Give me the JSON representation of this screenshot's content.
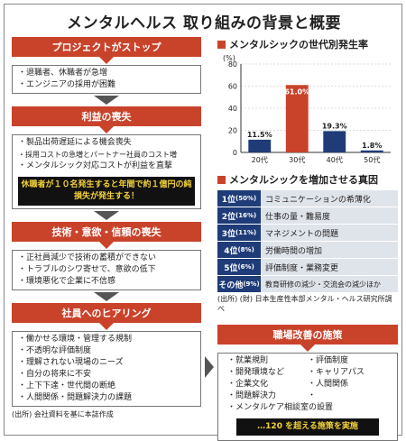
{
  "title": "メンタルヘルス 取り組みの背景と概要",
  "left": {
    "sections": [
      {
        "header": "プロジェクトがストップ",
        "items": [
          "退職者、休職者が急増",
          "エンジニアの採用が困難"
        ]
      },
      {
        "header": "利益の喪失",
        "items": [
          "製品出荷遅延による機会喪失",
          "採用コストの急増とパートナー社員のコスト増",
          "メンタルシック対応コストが利益を直撃"
        ],
        "callout": "休職者が１０名発生すると年間で約１億円の純損失が発生する！"
      },
      {
        "header": "技術・意欲・信頼の喪失",
        "items": [
          "正社員減少で技術の蓄積ができない",
          "トラブルのシワ寄せで、意欲の低下",
          "環境悪化で企業に不信感"
        ]
      },
      {
        "header": "社員へのヒアリング",
        "items": [
          "働かせる環境・管理する規制",
          "不透明な評価制度",
          "理解されない現場のニーズ",
          "自分の将来に不安",
          "上下下達・世代間の断絶",
          "人間関係・問題解決力の課題"
        ]
      }
    ],
    "source": "(出所) 会社資料を基に本誌作成"
  },
  "chart": {
    "heading": "メンタルシックの世代別発生率",
    "unit": "(%)"
  },
  "chart_data": {
    "type": "bar",
    "categories": [
      "20代",
      "30代",
      "40代",
      "50代"
    ],
    "values": [
      11.5,
      61.0,
      19.3,
      1.8
    ],
    "labels": [
      "11.5%",
      "61.0%",
      "19.3%",
      "1.8%"
    ],
    "highlight_color": "#c9432b",
    "bar_color": "#1f3c78",
    "ylim": [
      0,
      80
    ],
    "yticks": [
      "0",
      "20",
      "40",
      "60",
      "80"
    ]
  },
  "causes": {
    "heading": "メンタルシックを増加させる真因",
    "rows": [
      {
        "rank": "1位",
        "pct": "(50%)",
        "text": "コミュニケーションの希薄化"
      },
      {
        "rank": "2位",
        "pct": "(16%)",
        "text": "仕事の量・難易度"
      },
      {
        "rank": "3位",
        "pct": "(11%)",
        "text": "マネジメントの問題"
      },
      {
        "rank": "4位",
        "pct": "(8%)",
        "text": "労働時間の増加"
      },
      {
        "rank": "5位",
        "pct": "(6%)",
        "text": "評価制度・業務変更"
      },
      {
        "rank": "その他",
        "pct": "(9%)",
        "text": "教育研修の減少・交流会の減少ほか"
      }
    ],
    "source": "(出所) (財) 日本生産性本部メンタル・ヘルス研究所調べ"
  },
  "improvement": {
    "header": "職場改善の施策",
    "left_items": [
      "就業規則",
      "開発環境など",
      "企業文化",
      "問題解決力",
      "メンタルケア相談室の設置"
    ],
    "right_items": [
      "評価制度",
      "キャリアパス",
      "人間関係"
    ],
    "callout": "…120 を超える施策を実施"
  }
}
